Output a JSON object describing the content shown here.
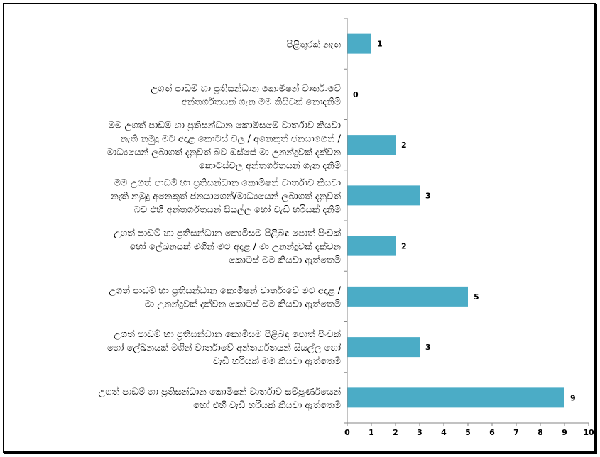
{
  "chart_data": {
    "type": "bar",
    "orientation": "horizontal",
    "categories": [
      [
        "පිළිතුරක් නැත"
      ],
      [
        "උගත් පාඩම් හා ප්‍රතිසන්ධාන කොමිෂන් වාර්තාවේ",
        "අන්තර්ගතයක් ගැන මම කිසිවක් නොදනිමි"
      ],
      [
        "මම උගත් පාඩම් හා ප්‍රතිසන්ධාන කොමිසමේ වාර්තාව කියවා",
        "නැති නමුදු මට අදාළ කොටස් වල / අනෙකුත් ජනයාගෙන් /",
        "මාධ්‍යයෙන් ලබාගත් දැනුවත් බව ඔස්සේ මා උනන්දුවක් දක්වන",
        "කොටස්වල අන්තර්ගතයන් ගැන දනිමි"
      ],
      [
        "මම උගත් පාඩම් හා ප්‍රතිසන්ධාන කොමිෂන් වාර්තාව කියවා",
        "නැති නමුදු අනෙකුත් ජනයාගෙන්/මාධ්‍යයෙන් ලබාගත් දැනුවත්",
        "බව එහි අන්තර්ගතයන් සියල්ල හෝ වැඩි හරියක් දනිමි"
      ],
      [
        "උගත් පාඩම් හා ප්‍රතිසන්ධාන කොමිසම පිළිබඳ පොත් පිංචක්",
        "හෝ ලේඛනයක් මගින් මට අදාළ / මා උනන්දුවක් දක්වන",
        "කොටස් මම කියවා ඇත්තෙමි"
      ],
      [
        "උගත් පාඩම් හා ප්‍රතිසන්ධාන කොමිෂන් වාර්තාවේ මට අදාළ /",
        "මා උනන්දුවක් දක්වන කොටස් මම කියවා ඇත්තෙමි"
      ],
      [
        "උගත් පාඩම් හා ප්‍රතිසන්ධාන කොමිසම පිළිබඳ පොත් පිංචක්",
        "හෝ ලේඛනයක් මගින් වාර්තාවේ අන්තර්ගතයන් සියල්ල හෝ",
        "වැඩි හරියක් මම කියවා ඇත්තෙමි"
      ],
      [
        "උගත් පාඩම් හා ප්‍රතිසන්ධාන කොමිෂන් වාර්තාව සම්පූර්ණයෙන්",
        "හෝ එහි වැඩි හරියක් කියවා ඇත්තෙමි"
      ]
    ],
    "values": [
      1,
      0,
      2,
      3,
      2,
      5,
      3,
      9
    ],
    "value_labels": [
      "1",
      "0",
      "2",
      "3",
      "2",
      "5",
      "3",
      "9"
    ],
    "xlim": [
      0,
      10
    ],
    "x_ticks": [
      "0",
      "1",
      "2",
      "3",
      "4",
      "5",
      "6",
      "7",
      "8",
      "9",
      "10"
    ],
    "grid": false,
    "legend": "none",
    "bar_color": "#4bacc6",
    "axis_color": "#868686",
    "title": "",
    "xlabel": "",
    "ylabel": ""
  }
}
